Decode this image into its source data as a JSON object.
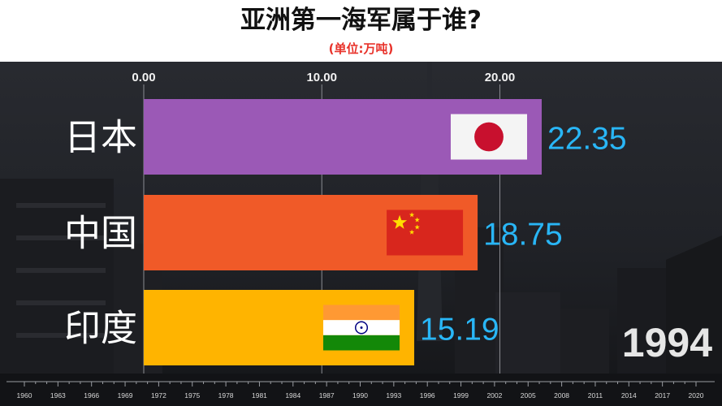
{
  "header": {
    "title": "亚洲第一海军属于谁?",
    "subtitle": "(单位:万吨)"
  },
  "year_label": "1994",
  "colors": {
    "japan_bar": "#9b59b6",
    "china_bar": "#f05a28",
    "india_bar": "#ffb400",
    "value_text": "#29b6f6",
    "subtitle": "#e8322a"
  },
  "chart_data": {
    "type": "bar",
    "orientation": "horizontal",
    "categories": [
      "日本",
      "中国",
      "印度"
    ],
    "values": [
      22.35,
      18.75,
      15.19
    ],
    "value_labels": [
      "22.35",
      "18.75",
      "15.19"
    ],
    "flags": [
      "japan-flag-icon",
      "china-flag-icon",
      "india-flag-icon"
    ],
    "xlim": [
      0,
      22.35
    ],
    "x_ticks": [
      "0.00",
      "10.00",
      "20.00"
    ],
    "x_tick_values": [
      0,
      10,
      20
    ],
    "timeline_labels": [
      "1960",
      "1963",
      "1966",
      "1969",
      "1972",
      "1975",
      "1978",
      "1981",
      "1984",
      "1987",
      "1990",
      "1993",
      "1996",
      "1999",
      "2002",
      "2005",
      "2008",
      "2011",
      "2014",
      "2017",
      "2020"
    ],
    "grid": true
  }
}
